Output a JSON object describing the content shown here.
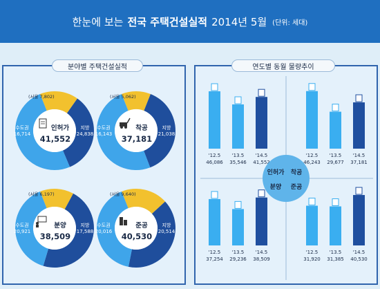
{
  "banner": {
    "prefix": "한눈에 보는",
    "title": "전국 주택건설실적",
    "date": "2014년  5월",
    "unit": "(단위: 세대)"
  },
  "left_panel_title": "분야별 주택건설실적",
  "right_panel_title": "연도별 동월 물량추이",
  "center_labels": [
    "인허가",
    "착공",
    "분양",
    "준공"
  ],
  "colors": {
    "banner": "#1f6fc0",
    "panel_border": "#2f64ad",
    "seoul": "#f2c12e",
    "metro": "#1f4e9c",
    "local": "#3fa5ea",
    "bar_light": "#3aaef0",
    "bar_dark": "#1f4f9f",
    "center_circle": "#5fb4ea"
  },
  "chart_data": [
    {
      "type": "pie",
      "title": "인허가",
      "total": "41,552",
      "icon": "document-icon",
      "categories": [
        "서울",
        "수도권",
        "지방"
      ],
      "values": [
        7802,
        16714,
        24838
      ],
      "labels": [
        "(서울 7,802)",
        "수도권\n16,714",
        "지방\n24,838"
      ]
    },
    {
      "type": "pie",
      "title": "착공",
      "total": "37,181",
      "icon": "excavator-icon",
      "categories": [
        "서울",
        "수도권",
        "지방"
      ],
      "values": [
        5062,
        16143,
        21038
      ],
      "labels": [
        "(서울 5,062)",
        "수도권\n16,143",
        "지방\n21,038"
      ]
    },
    {
      "type": "pie",
      "title": "분양",
      "total": "38,509",
      "icon": "presentation-icon",
      "categories": [
        "서울",
        "수도권",
        "지방"
      ],
      "values": [
        6197,
        20921,
        17588
      ],
      "labels": [
        "(서울 6,197)",
        "수도권\n20,921",
        "지방\n17,588"
      ]
    },
    {
      "type": "pie",
      "title": "준공",
      "total": "40,530",
      "icon": "buildings-icon",
      "categories": [
        "서울",
        "수도권",
        "지방"
      ],
      "values": [
        9640,
        20016,
        20514
      ],
      "labels": [
        "(서울 9,640)",
        "수도권\n20,016",
        "지방\n20,514"
      ]
    },
    {
      "type": "bar",
      "title": "인허가",
      "categories": [
        "'12.5",
        "'13.5",
        "'14.5"
      ],
      "values": [
        46086,
        35546,
        41552
      ],
      "value_labels": [
        "46,086",
        "35,546",
        "41,552"
      ]
    },
    {
      "type": "bar",
      "title": "착공",
      "categories": [
        "'12.5",
        "'13.5",
        "'14.5"
      ],
      "values": [
        46243,
        29677,
        37181
      ],
      "value_labels": [
        "46,243",
        "29,677",
        "37,181"
      ]
    },
    {
      "type": "bar",
      "title": "분양",
      "categories": [
        "'12.5",
        "'13.5",
        "'14.5"
      ],
      "values": [
        37254,
        29236,
        38509
      ],
      "value_labels": [
        "37,254",
        "29,236",
        "38,509"
      ]
    },
    {
      "type": "bar",
      "title": "준공",
      "categories": [
        "'12.5",
        "'13.5",
        "'14.5"
      ],
      "values": [
        31920,
        31385,
        40530
      ],
      "value_labels": [
        "31,920",
        "31,385",
        "40,530"
      ]
    }
  ]
}
